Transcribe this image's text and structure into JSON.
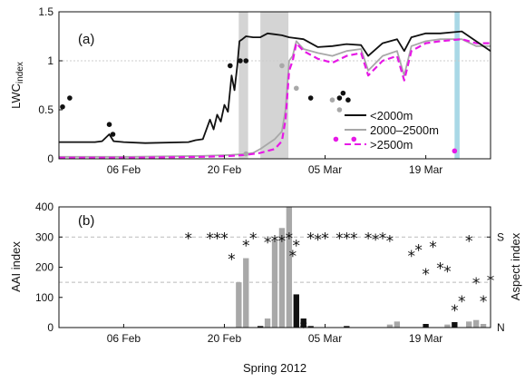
{
  "chart_data": [
    {
      "panel_label": "(a)",
      "type": "line",
      "ylabel": "LWC",
      "ylabel_sub": "index",
      "ylim": [
        0,
        1.5
      ],
      "yticks": [
        "0",
        "0.5",
        "1",
        "1.5"
      ],
      "x_domain_days": [
        0,
        60
      ],
      "xtick_days": [
        9,
        23,
        37,
        51
      ],
      "xtick_labels": [
        "06 Feb",
        "20 Feb",
        "05 Mar",
        "19 Mar"
      ],
      "reference_line": 1,
      "shaded_periods": [
        {
          "start": 25.0,
          "end": 26.3,
          "color": "#d4d4d4"
        },
        {
          "start": 28.0,
          "end": 31.9,
          "color": "#d4d4d4"
        },
        {
          "start": 55.0,
          "end": 55.7,
          "color": "#a9d8e6"
        }
      ],
      "legend": [
        "<2000m",
        "2000–2500m",
        ">2500m"
      ],
      "series": [
        {
          "name": "<2000m",
          "color": "#111111",
          "style": "solid",
          "points": [
            [
              0,
              0.17
            ],
            [
              5,
              0.17
            ],
            [
              6,
              0.18
            ],
            [
              7,
              0.25
            ],
            [
              7.6,
              0.18
            ],
            [
              9,
              0.17
            ],
            [
              12,
              0.16
            ],
            [
              18,
              0.17
            ],
            [
              19,
              0.19
            ],
            [
              20,
              0.2
            ],
            [
              21,
              0.4
            ],
            [
              21.5,
              0.3
            ],
            [
              22,
              0.45
            ],
            [
              22.5,
              0.38
            ],
            [
              23,
              0.55
            ],
            [
              23.5,
              0.48
            ],
            [
              24,
              0.85
            ],
            [
              24.4,
              0.7
            ],
            [
              24.8,
              0.95
            ],
            [
              25.1,
              1.2
            ],
            [
              25.5,
              1.22
            ],
            [
              26,
              1.25
            ],
            [
              27,
              1.24
            ],
            [
              28,
              1.24
            ],
            [
              29,
              1.28
            ],
            [
              30,
              1.27
            ],
            [
              31,
              1.26
            ],
            [
              32,
              1.24
            ],
            [
              34,
              1.22
            ],
            [
              36,
              1.14
            ],
            [
              38,
              1.15
            ],
            [
              40,
              1.17
            ],
            [
              42,
              1.16
            ],
            [
              43,
              1.05
            ],
            [
              45,
              1.18
            ],
            [
              47,
              1.22
            ],
            [
              48,
              1.1
            ],
            [
              49,
              1.24
            ],
            [
              51,
              1.28
            ],
            [
              53,
              1.28
            ],
            [
              56,
              1.3
            ],
            [
              58,
              1.2
            ],
            [
              60,
              1.1
            ]
          ]
        },
        {
          "name": "2000–2500m",
          "color": "#a8a8a8",
          "style": "solid",
          "points": [
            [
              0,
              0.02
            ],
            [
              10,
              0.02
            ],
            [
              20,
              0.03
            ],
            [
              24,
              0.04
            ],
            [
              26,
              0.05
            ],
            [
              27,
              0.06
            ],
            [
              28,
              0.1
            ],
            [
              29,
              0.15
            ],
            [
              30,
              0.2
            ],
            [
              31,
              0.28
            ],
            [
              31.5,
              0.5
            ],
            [
              32,
              1.0
            ],
            [
              32.5,
              1.05
            ],
            [
              33,
              1.2
            ],
            [
              34,
              1.12
            ],
            [
              36,
              1.08
            ],
            [
              38,
              1.05
            ],
            [
              40,
              1.1
            ],
            [
              42,
              1.12
            ],
            [
              43,
              0.9
            ],
            [
              45,
              1.05
            ],
            [
              47,
              1.1
            ],
            [
              48,
              0.85
            ],
            [
              49,
              1.15
            ],
            [
              51,
              1.2
            ],
            [
              53,
              1.22
            ],
            [
              56,
              1.22
            ],
            [
              58,
              1.15
            ],
            [
              60,
              1.15
            ]
          ]
        },
        {
          "name": ">2500m",
          "color": "#e619e6",
          "style": "dashed",
          "points": [
            [
              0,
              0.01
            ],
            [
              10,
              0.01
            ],
            [
              20,
              0.02
            ],
            [
              24,
              0.03
            ],
            [
              26,
              0.04
            ],
            [
              28,
              0.06
            ],
            [
              30,
              0.1
            ],
            [
              31,
              0.18
            ],
            [
              31.5,
              0.4
            ],
            [
              32,
              0.9
            ],
            [
              32.5,
              1.0
            ],
            [
              33,
              1.18
            ],
            [
              34,
              1.1
            ],
            [
              36,
              1.02
            ],
            [
              38,
              0.98
            ],
            [
              40,
              1.05
            ],
            [
              42,
              1.08
            ],
            [
              43,
              0.85
            ],
            [
              45,
              1.0
            ],
            [
              47,
              1.05
            ],
            [
              48,
              0.8
            ],
            [
              49,
              1.1
            ],
            [
              51,
              1.18
            ],
            [
              53,
              1.2
            ],
            [
              56,
              1.22
            ],
            [
              58,
              1.18
            ],
            [
              60,
              1.18
            ]
          ]
        }
      ],
      "dot_series": [
        {
          "color": "#111111",
          "points": [
            [
              0.5,
              0.53
            ],
            [
              1.5,
              0.62
            ],
            [
              7,
              0.35
            ],
            [
              7.5,
              0.25
            ],
            [
              23.8,
              0.95
            ],
            [
              25.2,
              1.0
            ],
            [
              26,
              1.0
            ],
            [
              35,
              0.62
            ],
            [
              39,
              0.62
            ],
            [
              39.5,
              0.67
            ],
            [
              40.2,
              0.6
            ]
          ]
        },
        {
          "color": "#a8a8a8",
          "points": [
            [
              26,
              0.05
            ],
            [
              31,
              0.95
            ],
            [
              33,
              0.72
            ],
            [
              38,
              0.6
            ],
            [
              39,
              0.5
            ]
          ]
        },
        {
          "color": "#e619e6",
          "points": [
            [
              38.5,
              0.2
            ],
            [
              41,
              0.2
            ],
            [
              55,
              0.08
            ]
          ]
        }
      ]
    },
    {
      "panel_label": "(b)",
      "type": "bar",
      "ylabel": "AAI index",
      "ylim": [
        0,
        400
      ],
      "yticks": [
        "0",
        "100",
        "200",
        "300",
        "400"
      ],
      "right_ylabel": "Aspect index",
      "right_yticks": [
        "N",
        "S"
      ],
      "x_domain_days": [
        0,
        60
      ],
      "xtick_days": [
        9,
        23,
        37,
        51
      ],
      "xtick_labels": [
        "06 Feb",
        "20 Feb",
        "05 Mar",
        "19 Mar"
      ],
      "xlabel": "Spring 2012",
      "dashed_lines": [
        150,
        300
      ],
      "bars": [
        {
          "day": 25,
          "value": 150,
          "color": "#a8a8a8"
        },
        {
          "day": 26,
          "value": 230,
          "color": "#a8a8a8"
        },
        {
          "day": 28,
          "value": 5,
          "color": "#111111"
        },
        {
          "day": 29,
          "value": 30,
          "color": "#a8a8a8"
        },
        {
          "day": 30,
          "value": 290,
          "color": "#a8a8a8"
        },
        {
          "day": 31,
          "value": 330,
          "color": "#a8a8a8"
        },
        {
          "day": 32,
          "value": 400,
          "color": "#a8a8a8"
        },
        {
          "day": 33,
          "value": 110,
          "color": "#111111"
        },
        {
          "day": 34,
          "value": 30,
          "color": "#111111"
        },
        {
          "day": 35,
          "value": 5,
          "color": "#111111"
        },
        {
          "day": 40,
          "value": 5,
          "color": "#111111"
        },
        {
          "day": 46,
          "value": 10,
          "color": "#a8a8a8"
        },
        {
          "day": 47,
          "value": 20,
          "color": "#a8a8a8"
        },
        {
          "day": 51,
          "value": 12,
          "color": "#111111"
        },
        {
          "day": 54,
          "value": 10,
          "color": "#a8a8a8"
        },
        {
          "day": 55,
          "value": 18,
          "color": "#111111"
        },
        {
          "day": 57,
          "value": 20,
          "color": "#a8a8a8"
        },
        {
          "day": 58,
          "value": 25,
          "color": "#a8a8a8"
        },
        {
          "day": 59,
          "value": 12,
          "color": "#a8a8a8"
        }
      ],
      "aspect_stars": [
        [
          18,
          300
        ],
        [
          21,
          300
        ],
        [
          22,
          300
        ],
        [
          23,
          300
        ],
        [
          24,
          230
        ],
        [
          26,
          275
        ],
        [
          27,
          300
        ],
        [
          29,
          285
        ],
        [
          30,
          290
        ],
        [
          31,
          290
        ],
        [
          32,
          300
        ],
        [
          32.5,
          240
        ],
        [
          33,
          275
        ],
        [
          34,
          5
        ],
        [
          35,
          300
        ],
        [
          36,
          295
        ],
        [
          37,
          300
        ],
        [
          39,
          300
        ],
        [
          40,
          300
        ],
        [
          41,
          300
        ],
        [
          43,
          300
        ],
        [
          44,
          295
        ],
        [
          45,
          300
        ],
        [
          46,
          290
        ],
        [
          49,
          240
        ],
        [
          50,
          260
        ],
        [
          51,
          180
        ],
        [
          52,
          270
        ],
        [
          53,
          200
        ],
        [
          54,
          190
        ],
        [
          55,
          60
        ],
        [
          56,
          90
        ],
        [
          57,
          290
        ],
        [
          58,
          150
        ],
        [
          59,
          90
        ],
        [
          60,
          160
        ]
      ]
    }
  ]
}
